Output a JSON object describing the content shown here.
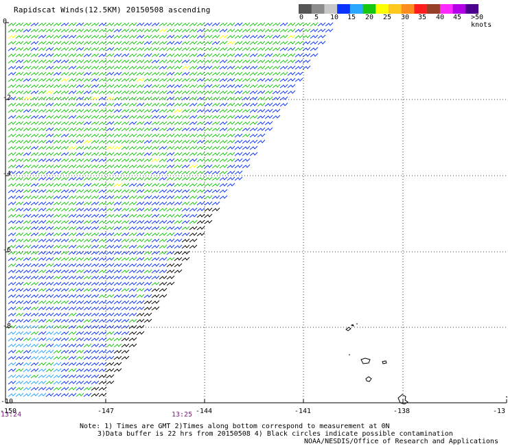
{
  "title": "Rapidscat Winds(12.5KM) 20150508 ascending",
  "colorbar": {
    "colors": [
      "#555555",
      "#8c8c8c",
      "#c8c8c8",
      "#0a33ff",
      "#2aa7ff",
      "#17c70f",
      "#ffff00",
      "#ffc81e",
      "#ff8c1e",
      "#ff1e1e",
      "#96402a",
      "#ff2aff",
      "#b400e6",
      "#4b008c"
    ],
    "labels": [
      "0",
      "5",
      "10",
      "15",
      "20",
      "25",
      "30",
      "35",
      "40",
      "45",
      ">50 knots"
    ]
  },
  "y_axis": {
    "labels": [
      "0",
      "-2",
      "-4",
      "-6",
      "-8",
      "-10"
    ]
  },
  "x_axis": {
    "labels": [
      "-150",
      "-147",
      "-144",
      "-141",
      "-138",
      "-13"
    ]
  },
  "times": {
    "left": "13:24",
    "center": "13:25"
  },
  "notes": {
    "line1": "Note: 1) Times are GMT 2)Times along bottom correspond to measurement at 0N",
    "line2": "3)Data buffer is 22 hrs from 20150508 4) Black circles indicate possible contamination",
    "line3": "NOAA/NESDIS/Office of Research and Applications"
  }
}
